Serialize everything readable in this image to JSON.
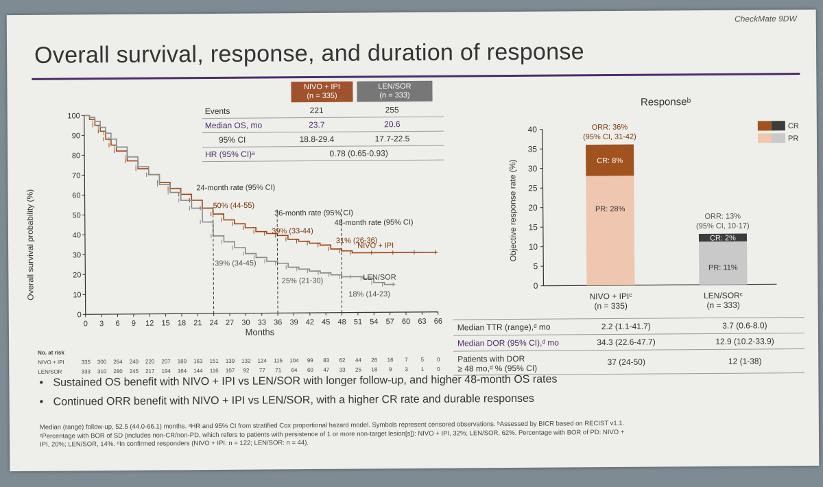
{
  "slide": {
    "study_tag": "CheckMate 9DW",
    "title": "Overall survival, response, and duration of response"
  },
  "os_table": {
    "col1": {
      "name": "NIVO + IPI",
      "n": "(n = 335)"
    },
    "col2": {
      "name": "LEN/SOR",
      "n": "(n = 333)"
    },
    "rows": [
      {
        "label": "Events",
        "v1": "221",
        "v2": "255"
      },
      {
        "label": "Median OS, mo",
        "v1": "23.7",
        "v2": "20.6"
      },
      {
        "label": "95% CI",
        "v1": "18.8-29.4",
        "v2": "17.7-22.5"
      }
    ],
    "hr_label": "HR (95% CI)ᵃ",
    "hr_value": "0.78 (0.65-0.93)"
  },
  "risk_table": {
    "header": "No. at risk",
    "rows": [
      {
        "label": "NIVO + IPI",
        "values": [
          "335",
          "300",
          "264",
          "240",
          "220",
          "207",
          "180",
          "163",
          "151",
          "139",
          "132",
          "124",
          "115",
          "104",
          "99",
          "83",
          "62",
          "44",
          "26",
          "16",
          "7",
          "5",
          "0"
        ]
      },
      {
        "label": "LEN/SOR",
        "values": [
          "333",
          "310",
          "280",
          "245",
          "217",
          "194",
          "164",
          "144",
          "116",
          "107",
          "92",
          "77",
          "71",
          "64",
          "60",
          "47",
          "33",
          "25",
          "18",
          "9",
          "3",
          "1",
          "0"
        ]
      }
    ]
  },
  "response_table": {
    "rows": [
      {
        "label": "Median TTR (range),ᵈ mo",
        "v1": "2.2 (1.1-41.7)",
        "v2": "3.7 (0.6-8.0)"
      },
      {
        "label": "Median DOR (95% CI),ᵈ mo",
        "v1": "34.3 (22.6-47.7)",
        "v2": "12.9 (10.2-33.9)"
      },
      {
        "label_line1": "Patients with DOR",
        "label_line2": "≥ 48 mo,ᵈ % (95% CI)",
        "v1": "37 (24-50)",
        "v2": "12 (1-38)"
      }
    ]
  },
  "bullets": [
    "Sustained OS benefit with NIVO + IPI vs LEN/SOR with longer follow-up, and higher 48-month OS rates",
    "Continued ORR benefit with NIVO + IPI vs LEN/SOR, with a higher CR rate and durable responses"
  ],
  "footnote": {
    "line1": "Median (range) follow-up, 52.5 (44.0-66.1) months. ᵃHR and 95% CI from stratified Cox proportional hazard model. Symbols represent censored observations. ᵇAssessed by BICR based on RECIST v1.1.",
    "line2": "ᶜPercentage with BOR of SD (includes non-CR/non-PD, which refers to patients with persistence of 1 or more non-target lesion[s]): NIVO + IPI, 32%; LEN/SOR, 62%. Percentage with BOR of PD: NIVO +",
    "line3": "IPI, 20%; LEN/SOR, 14%. ᵈIn confirmed responders (NIVO + IPI: n = 122; LEN/SOR: n = 44)."
  },
  "chart_data": [
    {
      "type": "line",
      "title": "",
      "xlabel": "Months",
      "ylabel": "Overall survival probability (%)",
      "xlim": [
        0,
        66
      ],
      "ylim": [
        0,
        100
      ],
      "xticks": [
        0,
        3,
        6,
        9,
        12,
        15,
        18,
        21,
        24,
        27,
        30,
        33,
        36,
        39,
        42,
        45,
        48,
        51,
        54,
        57,
        60,
        63,
        66
      ],
      "yticks": [
        0,
        10,
        20,
        30,
        40,
        50,
        60,
        70,
        80,
        90,
        100
      ],
      "series": [
        {
          "name": "NIVO + IPI",
          "label": "NIVO + IPI",
          "color": "#9c4a1c",
          "x": [
            0,
            1,
            2,
            3,
            4,
            5,
            6,
            8,
            10,
            12,
            14,
            16,
            18,
            20,
            22,
            24,
            26,
            28,
            30,
            32,
            34,
            36,
            38,
            40,
            42,
            44,
            46,
            48,
            50,
            54,
            58,
            62,
            66
          ],
          "y": [
            100,
            98,
            95,
            92,
            88,
            85,
            82,
            77,
            73,
            70,
            66,
            63,
            60,
            57,
            53,
            50,
            47,
            45,
            43,
            41,
            40,
            39,
            37,
            36,
            35,
            34,
            32,
            31,
            30,
            30,
            30,
            30,
            30
          ]
        },
        {
          "name": "LEN/SOR",
          "label": "LEN/SOR",
          "color": "#8a8a8a",
          "x": [
            0,
            1,
            2,
            3,
            4,
            5,
            6,
            8,
            10,
            12,
            14,
            16,
            18,
            20,
            22,
            24,
            26,
            28,
            30,
            32,
            34,
            36,
            38,
            40,
            42,
            44,
            46,
            48,
            50,
            52,
            54,
            56,
            58
          ],
          "y": [
            100,
            99,
            97,
            94,
            91,
            88,
            84,
            79,
            74,
            70,
            65,
            61,
            57,
            53,
            46,
            39,
            36,
            33,
            30,
            28,
            26,
            25,
            23,
            22,
            21,
            20,
            19,
            18,
            18,
            17,
            15,
            14,
            14
          ]
        }
      ],
      "annotations": [
        {
          "text": "24-month rate (95% CI)",
          "x": 24
        },
        {
          "text": "50% (44-55)",
          "x": 24,
          "y": 50
        },
        {
          "text": "39% (34-45)",
          "x": 24,
          "y": 39
        },
        {
          "text": "36-month rate (95% CI)",
          "x": 36
        },
        {
          "text": "39% (33-44)",
          "x": 36,
          "y": 39
        },
        {
          "text": "25% (21-30)",
          "x": 36,
          "y": 25
        },
        {
          "text": "48-month rate (95% CI)",
          "x": 48
        },
        {
          "text": "31% (26-36)",
          "x": 48,
          "y": 31
        },
        {
          "text": "18% (14-23)",
          "x": 48,
          "y": 18
        }
      ]
    },
    {
      "type": "bar",
      "title": "Responseᵇ",
      "xlabel": "",
      "ylabel": "Objective response rate (%)",
      "ylim": [
        0,
        40
      ],
      "yticks": [
        0,
        5,
        10,
        15,
        20,
        25,
        30,
        35,
        40
      ],
      "categories": [
        "NIVO + IPIᶜ",
        "LEN/SORᶜ"
      ],
      "category_n": [
        "(n = 335)",
        "(n = 333)"
      ],
      "series": [
        {
          "name": "PR",
          "values": [
            28,
            11
          ],
          "labels": [
            "PR: 28%",
            "PR: 11%"
          ],
          "colors": [
            "#efc7b0",
            "#c9c9c9"
          ]
        },
        {
          "name": "CR",
          "values": [
            8,
            2
          ],
          "labels": [
            "CR: 8%",
            "CR: 2%"
          ],
          "colors": [
            "#a0531e",
            "#3c3c3c"
          ]
        }
      ],
      "orr_labels": [
        {
          "line1": "ORR: 36%",
          "line2": "(95% CI, 31-42)",
          "total": 36
        },
        {
          "line1": "ORR: 13%",
          "line2": "(95% CI, 10-17)",
          "total": 13
        }
      ],
      "legend": [
        {
          "label": "CR",
          "colors": [
            "#a0531e",
            "#3c3c3c"
          ]
        },
        {
          "label": "PR",
          "colors": [
            "#efc7b0",
            "#c9c9c9"
          ]
        }
      ],
      "legend_position": "top-right"
    }
  ]
}
